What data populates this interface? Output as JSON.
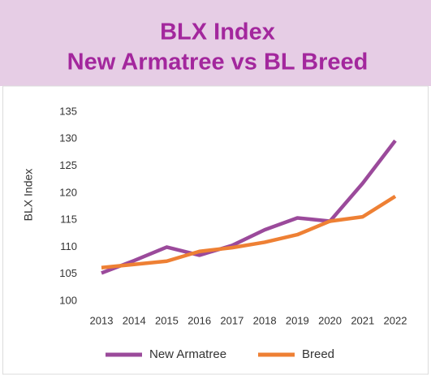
{
  "chart_data": {
    "type": "line",
    "title": [
      "BLX Index",
      "New Armatree vs BL Breed"
    ],
    "y_label": "BLX Index",
    "categories": [
      "2013",
      "2014",
      "2015",
      "2016",
      "2017",
      "2018",
      "2019",
      "2020",
      "2021",
      "2022"
    ],
    "series": [
      {
        "name": "New Armatree",
        "color": "#9b4a9b",
        "values": [
          105.2,
          107.5,
          110,
          108.5,
          110.3,
          113.2,
          115.4,
          114.8,
          121.8,
          129.7
        ]
      },
      {
        "name": "Breed",
        "color": "#ee8034",
        "values": [
          106.2,
          106.8,
          107.4,
          109.2,
          109.9,
          110.9,
          112.3,
          114.8,
          115.6,
          119.4
        ]
      }
    ],
    "ylim": [
      100,
      135
    ],
    "yticks": [
      100,
      105,
      110,
      115,
      120,
      125,
      130,
      135
    ],
    "grid": false,
    "legend": "bottom"
  }
}
